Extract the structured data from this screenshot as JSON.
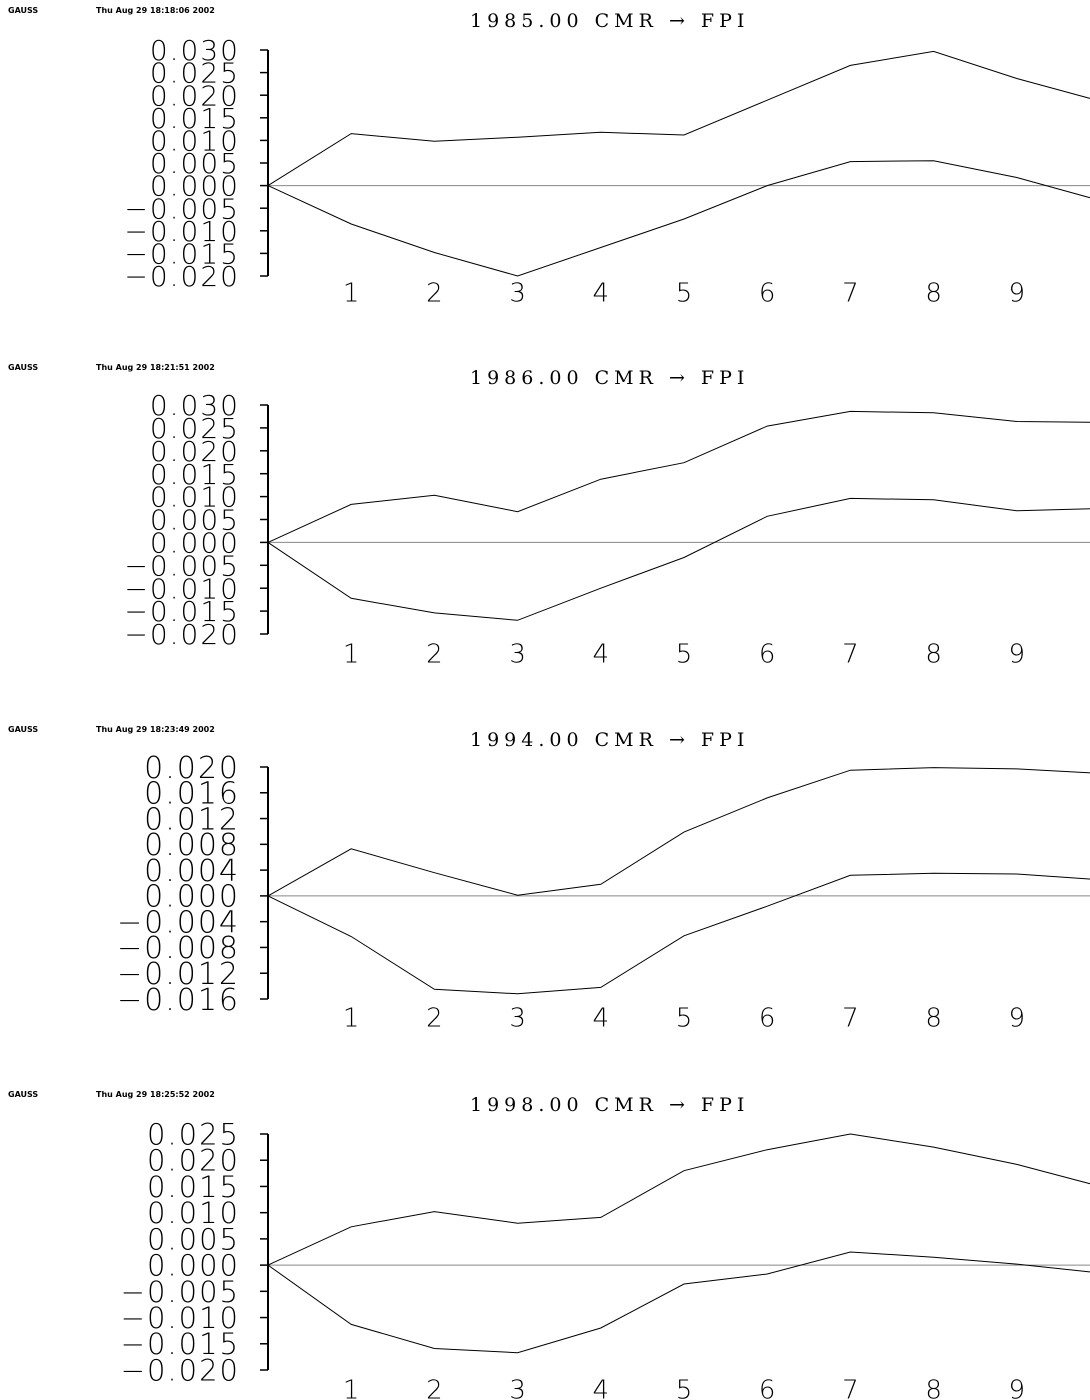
{
  "chart_data": [
    {
      "type": "line",
      "program": "GAUSS",
      "timestamp": "Thu Aug 29 18:18:06 2002",
      "title": "1985.00 CMR → FPI",
      "xlabel": "",
      "ylabel": "",
      "x": [
        0,
        1,
        2,
        3,
        4,
        5,
        6,
        7,
        8,
        9,
        10
      ],
      "xticks": [
        "1",
        "2",
        "3",
        "4",
        "5",
        "6",
        "7",
        "8",
        "9"
      ],
      "yticks": [
        "0.030",
        "0.025",
        "0.020",
        "0.015",
        "0.010",
        "0.005",
        "0.000",
        "−0.005",
        "−0.010",
        "−0.015",
        "−0.020"
      ],
      "ylim": [
        -0.02,
        0.03
      ],
      "zero_line": true,
      "series": [
        {
          "values": [
            0.0,
            0.0115,
            0.0098,
            0.0107,
            0.0118,
            0.0112,
            0.0189,
            0.0266,
            0.0297,
            0.0237,
            0.0187
          ]
        },
        {
          "values": [
            0.0,
            -0.0085,
            -0.0148,
            -0.02,
            -0.0137,
            -0.0074,
            0.0,
            0.0053,
            0.0055,
            0.0018,
            -0.0033
          ]
        }
      ]
    },
    {
      "type": "line",
      "program": "GAUSS",
      "timestamp": "Thu Aug 29 18:21:51 2002",
      "title": "1986.00 CMR → FPI",
      "xlabel": "",
      "ylabel": "",
      "x": [
        0,
        1,
        2,
        3,
        4,
        5,
        6,
        7,
        8,
        9,
        10
      ],
      "xticks": [
        "1",
        "2",
        "3",
        "4",
        "5",
        "6",
        "7",
        "8",
        "9"
      ],
      "yticks": [
        "0.030",
        "0.025",
        "0.020",
        "0.015",
        "0.010",
        "0.005",
        "0.000",
        "−0.005",
        "−0.010",
        "−0.015",
        "−0.020"
      ],
      "ylim": [
        -0.02,
        0.03
      ],
      "zero_line": true,
      "series": [
        {
          "values": [
            0.0,
            0.0083,
            0.0103,
            0.0067,
            0.0138,
            0.0174,
            0.0254,
            0.0286,
            0.0283,
            0.0264,
            0.0262
          ]
        },
        {
          "values": [
            0.0,
            -0.0122,
            -0.0154,
            -0.017,
            -0.01,
            -0.0033,
            0.0057,
            0.0096,
            0.0093,
            0.0069,
            0.0074
          ]
        }
      ]
    },
    {
      "type": "line",
      "program": "GAUSS",
      "timestamp": "Thu Aug 29 18:23:49 2002",
      "title": "1994.00 CMR → FPI",
      "xlabel": "",
      "ylabel": "",
      "x": [
        0,
        1,
        2,
        3,
        4,
        5,
        6,
        7,
        8,
        9,
        10
      ],
      "xticks": [
        "1",
        "2",
        "3",
        "4",
        "5",
        "6",
        "7",
        "8",
        "9"
      ],
      "yticks": [
        "0.020",
        "0.016",
        "0.012",
        "0.008",
        "0.004",
        "0.000",
        "−0.004",
        "−0.008",
        "−0.012",
        "−0.016"
      ],
      "ylim": [
        -0.016,
        0.02
      ],
      "zero_line": true,
      "series": [
        {
          "values": [
            0.0,
            0.0073,
            0.0036,
            0.0001,
            0.0018,
            0.0099,
            0.0152,
            0.0195,
            0.0199,
            0.0197,
            0.019
          ]
        },
        {
          "values": [
            0.0,
            -0.0063,
            -0.0145,
            -0.0152,
            -0.0142,
            -0.0062,
            -0.0016,
            0.0032,
            0.0035,
            0.0034,
            0.0025
          ]
        }
      ]
    },
    {
      "type": "line",
      "program": "GAUSS",
      "timestamp": "Thu Aug 29 18:25:52 2002",
      "title": "1998.00 CMR → FPI",
      "xlabel": "",
      "ylabel": "",
      "x": [
        0,
        1,
        2,
        3,
        4,
        5,
        6,
        7,
        8,
        9,
        10
      ],
      "xticks": [
        "1",
        "2",
        "3",
        "4",
        "5",
        "6",
        "7",
        "8",
        "9"
      ],
      "yticks": [
        "0.025",
        "0.020",
        "0.015",
        "0.010",
        "0.005",
        "0.000",
        "−0.005",
        "−0.010",
        "−0.015",
        "−0.020"
      ],
      "ylim": [
        -0.02,
        0.025
      ],
      "zero_line": true,
      "series": [
        {
          "values": [
            0.0,
            0.0073,
            0.0102,
            0.008,
            0.0091,
            0.018,
            0.022,
            0.025,
            0.0225,
            0.0192,
            0.015
          ]
        },
        {
          "values": [
            0.0,
            -0.0113,
            -0.0159,
            -0.0167,
            -0.012,
            -0.0036,
            -0.0017,
            0.0025,
            0.0015,
            0.0002,
            -0.0015
          ]
        }
      ]
    }
  ]
}
